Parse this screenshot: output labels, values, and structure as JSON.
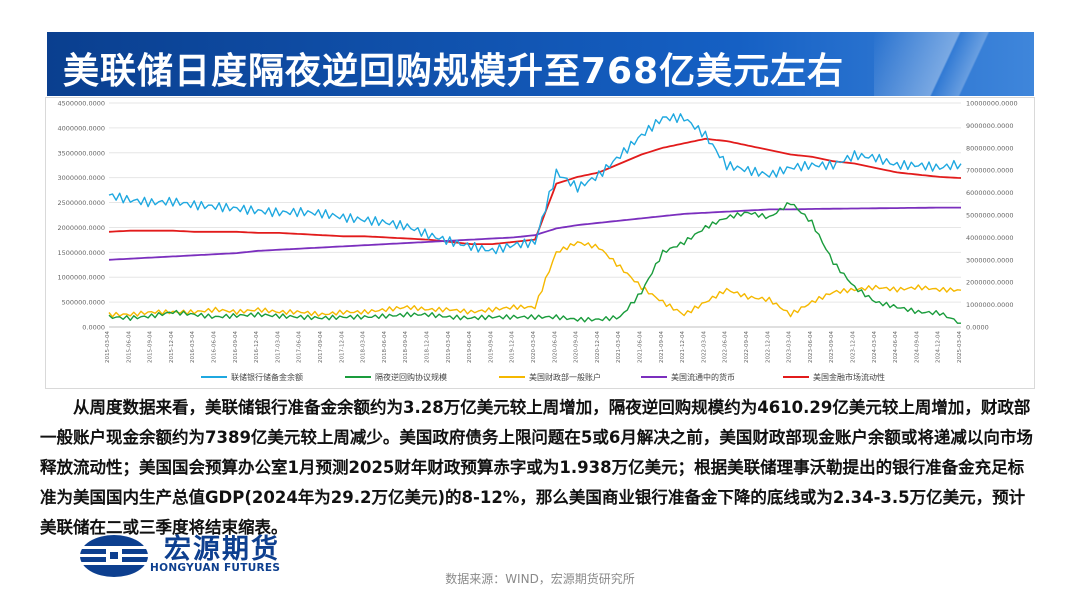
{
  "header": {
    "title": "美联储日度隔夜逆回购规模升至768亿美元左右"
  },
  "chart_data": {
    "type": "line",
    "x_labels": [
      "2015-03-04",
      "2015-06-04",
      "2015-09-04",
      "2015-12-04",
      "2016-03-04",
      "2016-06-04",
      "2016-09-04",
      "2016-12-04",
      "2017-03-04",
      "2017-06-04",
      "2017-09-04",
      "2017-12-04",
      "2018-03-04",
      "2018-06-04",
      "2018-09-04",
      "2018-12-04",
      "2019-03-04",
      "2019-06-04",
      "2019-09-04",
      "2019-12-04",
      "2020-03-04",
      "2020-06-04",
      "2020-09-04",
      "2020-12-04",
      "2021-03-04",
      "2021-06-04",
      "2021-09-04",
      "2021-12-04",
      "2022-03-04",
      "2022-06-04",
      "2022-09-04",
      "2022-12-04",
      "2023-03-04",
      "2023-06-04",
      "2023-09-04",
      "2023-12-04",
      "2024-03-04",
      "2024-06-04",
      "2024-09-04",
      "2024-12-04",
      "2025-03-04"
    ],
    "y_left": {
      "ticks": [
        "0.0000",
        "500000.0000",
        "1000000.0000",
        "1500000.0000",
        "2000000.0000",
        "2500000.0000",
        "3000000.0000",
        "3500000.0000",
        "4000000.0000",
        "4500000.0000"
      ],
      "range": [
        0,
        4500000
      ]
    },
    "y_right": {
      "ticks": [
        "0.0000",
        "1000000.0000",
        "2000000.0000",
        "3000000.0000",
        "4000000.0000",
        "5000000.0000",
        "6000000.0000",
        "7000000.0000",
        "8000000.0000",
        "9000000.0000",
        "10000000.0000"
      ],
      "range": [
        0,
        10000000
      ]
    },
    "series": [
      {
        "name": "联储银行储备金余额",
        "color": "#1fa8e0",
        "axis": "left",
        "values": [
          2650,
          2550,
          2500,
          2520,
          2450,
          2420,
          2380,
          2330,
          2300,
          2310,
          2280,
          2200,
          2150,
          2100,
          2020,
          1850,
          1720,
          1620,
          1530,
          1650,
          1700,
          3100,
          2800,
          3050,
          3450,
          3850,
          4200,
          4200,
          3850,
          3250,
          3150,
          3050,
          3200,
          3250,
          3250,
          3450,
          3400,
          3250,
          3250,
          3200,
          3280
        ],
        "unit_scale": 1000
      },
      {
        "name": "隔夜逆回购协议规模",
        "color": "#1a9c3c",
        "axis": "left",
        "values": [
          200,
          180,
          220,
          300,
          250,
          200,
          230,
          250,
          220,
          200,
          180,
          200,
          200,
          220,
          250,
          250,
          200,
          180,
          200,
          200,
          200,
          200,
          150,
          150,
          200,
          700,
          1500,
          1700,
          2000,
          2200,
          2300,
          2200,
          2500,
          2100,
          1300,
          800,
          500,
          400,
          300,
          280,
          77
        ],
        "unit_scale": 1000
      },
      {
        "name": "美国财政部一般账户",
        "color": "#f5b800",
        "axis": "left",
        "values": [
          250,
          250,
          300,
          300,
          300,
          350,
          300,
          350,
          300,
          300,
          250,
          300,
          300,
          350,
          400,
          350,
          350,
          300,
          350,
          400,
          400,
          1500,
          1700,
          1600,
          1200,
          800,
          500,
          250,
          500,
          750,
          600,
          550,
          250,
          500,
          700,
          750,
          800,
          750,
          800,
          750,
          739
        ],
        "unit_scale": 1000
      },
      {
        "name": "美国流通中的货币",
        "color": "#7b2fbe",
        "axis": "right",
        "values": [
          3000,
          3050,
          3100,
          3150,
          3200,
          3250,
          3300,
          3400,
          3450,
          3500,
          3550,
          3600,
          3650,
          3700,
          3750,
          3800,
          3850,
          3900,
          3950,
          4000,
          4100,
          4400,
          4550,
          4650,
          4750,
          4850,
          4950,
          5050,
          5100,
          5150,
          5200,
          5250,
          5250,
          5270,
          5280,
          5290,
          5300,
          5310,
          5320,
          5330,
          5330
        ],
        "unit_scale": 1000
      },
      {
        "name": "美国金融市场流动性",
        "color": "#e21b1b",
        "axis": "right",
        "values": [
          4250,
          4300,
          4300,
          4300,
          4250,
          4250,
          4250,
          4200,
          4200,
          4150,
          4100,
          4050,
          4050,
          4000,
          3950,
          3900,
          3800,
          3700,
          3700,
          3800,
          3900,
          6400,
          6700,
          6900,
          7300,
          7700,
          8000,
          8200,
          8400,
          8300,
          8100,
          7900,
          7700,
          7600,
          7400,
          7300,
          7100,
          6900,
          6800,
          6700,
          6650
        ],
        "unit_scale": 1000
      }
    ]
  },
  "body": {
    "paragraph": "从周度数据来看，美联储银行准备金余额约为3.28万亿美元较上周增加，隔夜逆回购规模约为4610.29亿美元较上周增加，财政部一般账户现金余额约为7389亿美元较上周减少。美国政府债务上限问题在5或6月解决之前，美国财政部现金账户余额或将递减以向市场释放流动性；美国国会预算办公室1月预测2025财年财政预算赤字或为1.938万亿美元；根据美联储理事沃勒提出的银行准备金充足标准为美国国内生产总值GDP(2024年为29.2万亿美元)的8-12%，那么美国商业银行准备金下降的底线或为2.34-3.5万亿美元，预计美联储在二或三季度将结束缩表。"
  },
  "logo": {
    "name_cn": "宏源期货",
    "name_en": "HONGYUAN FUTURES"
  },
  "footer": {
    "source": "数据来源：WIND，宏源期货研究所"
  },
  "colors": {
    "banner": "#0a3f8f",
    "brand": "#0d3f8f"
  }
}
